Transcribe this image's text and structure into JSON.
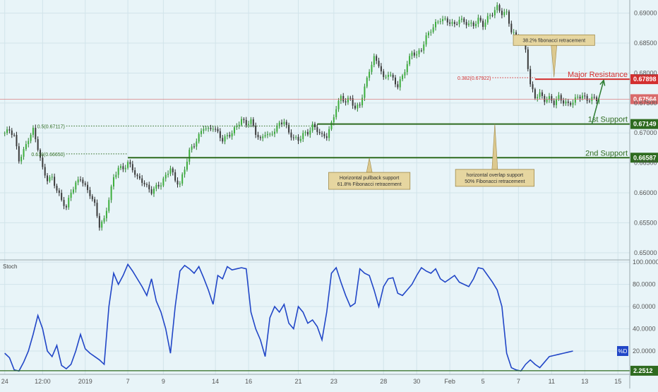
{
  "chart_data": [
    {
      "type": "candlestick",
      "price_axis": {
        "ticks": [
          {
            "value": 0.69,
            "label": "0.69000"
          },
          {
            "value": 0.685,
            "label": "0.68500"
          },
          {
            "value": 0.68,
            "label": "0.68000"
          },
          {
            "value": 0.675,
            "label": "0.67500"
          },
          {
            "value": 0.67,
            "label": "0.67000"
          },
          {
            "value": 0.665,
            "label": "0.66500"
          },
          {
            "value": 0.66,
            "label": "0.66000"
          },
          {
            "value": 0.655,
            "label": "0.65500"
          },
          {
            "value": 0.65,
            "label": "0.65000"
          }
        ],
        "ylim": [
          0.6488,
          0.6922
        ]
      },
      "time_axis": {
        "ticks": [
          {
            "t": 0,
            "label": "24"
          },
          {
            "t": 16,
            "label": "12:00"
          },
          {
            "t": 34,
            "label": "2019"
          },
          {
            "t": 52,
            "label": "7"
          },
          {
            "t": 67,
            "label": "9"
          },
          {
            "t": 89,
            "label": "14"
          },
          {
            "t": 103,
            "label": "16"
          },
          {
            "t": 124,
            "label": "21"
          },
          {
            "t": 139,
            "label": "23"
          },
          {
            "t": 160,
            "label": "28"
          },
          {
            "t": 174,
            "label": "30"
          },
          {
            "t": 188,
            "label": "Feb"
          },
          {
            "t": 202,
            "label": "5"
          },
          {
            "t": 217,
            "label": "7"
          },
          {
            "t": 231,
            "label": "11"
          },
          {
            "t": 245,
            "label": "13"
          },
          {
            "t": 259,
            "label": "15"
          }
        ],
        "xlim": [
          -2,
          264
        ]
      },
      "close_series": [
        [
          0,
          0.67
        ],
        [
          2,
          0.6705
        ],
        [
          4,
          0.6695
        ],
        [
          6,
          0.6655
        ],
        [
          8,
          0.667
        ],
        [
          10,
          0.669
        ],
        [
          12,
          0.6705
        ],
        [
          14,
          0.6675
        ],
        [
          16,
          0.664
        ],
        [
          18,
          0.6622
        ],
        [
          20,
          0.6625
        ],
        [
          22,
          0.6605
        ],
        [
          24,
          0.6588
        ],
        [
          26,
          0.6575
        ],
        [
          28,
          0.6602
        ],
        [
          30,
          0.6615
        ],
        [
          32,
          0.6625
        ],
        [
          34,
          0.661
        ],
        [
          36,
          0.6598
        ],
        [
          38,
          0.658
        ],
        [
          40,
          0.6545
        ],
        [
          42,
          0.6555
        ],
        [
          44,
          0.659
        ],
        [
          46,
          0.6625
        ],
        [
          48,
          0.6642
        ],
        [
          50,
          0.664
        ],
        [
          52,
          0.665
        ],
        [
          54,
          0.664
        ],
        [
          56,
          0.6625
        ],
        [
          58,
          0.662
        ],
        [
          60,
          0.661
        ],
        [
          62,
          0.6602
        ],
        [
          64,
          0.661
        ],
        [
          66,
          0.6615
        ],
        [
          68,
          0.6628
        ],
        [
          70,
          0.6642
        ],
        [
          72,
          0.662
        ],
        [
          74,
          0.6615
        ],
        [
          76,
          0.664
        ],
        [
          78,
          0.667
        ],
        [
          80,
          0.668
        ],
        [
          82,
          0.6695
        ],
        [
          84,
          0.671
        ],
        [
          86,
          0.6705
        ],
        [
          88,
          0.671
        ],
        [
          90,
          0.67
        ],
        [
          92,
          0.6688
        ],
        [
          94,
          0.6695
        ],
        [
          96,
          0.67
        ],
        [
          98,
          0.6712
        ],
        [
          100,
          0.6722
        ],
        [
          102,
          0.6715
        ],
        [
          104,
          0.672
        ],
        [
          106,
          0.67
        ],
        [
          108,
          0.6688
        ],
        [
          110,
          0.67
        ],
        [
          112,
          0.6695
        ],
        [
          114,
          0.6705
        ],
        [
          116,
          0.6715
        ],
        [
          118,
          0.672
        ],
        [
          120,
          0.67
        ],
        [
          122,
          0.6692
        ],
        [
          124,
          0.6688
        ],
        [
          126,
          0.6698
        ],
        [
          128,
          0.67
        ],
        [
          130,
          0.6712
        ],
        [
          132,
          0.6705
        ],
        [
          134,
          0.6695
        ],
        [
          136,
          0.6695
        ],
        [
          138,
          0.6715
        ],
        [
          140,
          0.6742
        ],
        [
          142,
          0.676
        ],
        [
          144,
          0.6752
        ],
        [
          146,
          0.6758
        ],
        [
          148,
          0.674
        ],
        [
          150,
          0.6748
        ],
        [
          152,
          0.6775
        ],
        [
          154,
          0.6805
        ],
        [
          156,
          0.6825
        ],
        [
          158,
          0.6815
        ],
        [
          160,
          0.679
        ],
        [
          162,
          0.68
        ],
        [
          164,
          0.679
        ],
        [
          166,
          0.6778
        ],
        [
          168,
          0.6795
        ],
        [
          170,
          0.6815
        ],
        [
          172,
          0.6835
        ],
        [
          174,
          0.683
        ],
        [
          176,
          0.684
        ],
        [
          178,
          0.686
        ],
        [
          180,
          0.6872
        ],
        [
          182,
          0.6882
        ],
        [
          184,
          0.689
        ],
        [
          186,
          0.6888
        ],
        [
          188,
          0.6885
        ],
        [
          190,
          0.688
        ],
        [
          192,
          0.689
        ],
        [
          194,
          0.6885
        ],
        [
          196,
          0.6882
        ],
        [
          198,
          0.688
        ],
        [
          200,
          0.689
        ],
        [
          202,
          0.688
        ],
        [
          204,
          0.6892
        ],
        [
          206,
          0.69
        ],
        [
          208,
          0.691
        ],
        [
          210,
          0.69
        ],
        [
          212,
          0.69
        ],
        [
          214,
          0.687
        ],
        [
          216,
          0.686
        ],
        [
          218,
          0.6858
        ],
        [
          220,
          0.684
        ],
        [
          222,
          0.678
        ],
        [
          224,
          0.676
        ],
        [
          226,
          0.6765
        ],
        [
          228,
          0.6755
        ],
        [
          230,
          0.6758
        ],
        [
          232,
          0.675
        ],
        [
          234,
          0.676
        ],
        [
          236,
          0.6752
        ],
        [
          238,
          0.6748
        ],
        [
          240,
          0.6752
        ],
        [
          242,
          0.676
        ],
        [
          244,
          0.6762
        ],
        [
          246,
          0.6755
        ],
        [
          248,
          0.6758
        ],
        [
          250,
          0.6756
        ]
      ],
      "horizontal_lines": [
        {
          "label": "Major Resistance",
          "value": 0.67898,
          "value_label": "0.67898",
          "color": "#d32f2f",
          "x_start": 224
        },
        {
          "label": "1st Support",
          "value": 0.67149,
          "value_label": "0.67149",
          "color": "#2e6b1f",
          "x_start": 132
        },
        {
          "label": "2nd Support",
          "value": 0.66587,
          "value_label": "0.66587",
          "color": "#2e6b1f",
          "x_start": 52
        }
      ],
      "current_price": {
        "value": 0.67564,
        "label": "0.67564",
        "color": "#d96a6a"
      },
      "fib_levels": [
        {
          "text": "0.382(0.67922)",
          "value": 0.67922,
          "t_start": 206,
          "t_end": 224,
          "color": "#d32f2f"
        },
        {
          "text": "0.5(0.67117)",
          "value": 0.67117,
          "t_start": 26,
          "t_end": 132,
          "color": "#2e6b1f"
        },
        {
          "text": "0.618(0.66650)",
          "value": 0.6665,
          "t_start": 26,
          "t_end": 52,
          "color": "#2e6b1f"
        }
      ],
      "annotations": [
        {
          "lines": [
            "38.2% fibonacci retracement"
          ],
          "t": 232,
          "value": 0.6855,
          "point_t": 232,
          "point_value": 0.6793
        },
        {
          "lines": [
            "Horizontal pullback support",
            "61.8% Fibonacci retracement"
          ],
          "t": 154,
          "value": 0.662,
          "point_t": 154,
          "point_value": 0.6658
        },
        {
          "lines": [
            "horizontal overlap support",
            "50% Fibonacci retracement"
          ],
          "t": 207,
          "value": 0.6625,
          "point_t": 207,
          "point_value": 0.6715
        }
      ],
      "arrow": {
        "from_t": 248,
        "from_value": 0.6715,
        "to_t": 253,
        "to_value": 0.6788,
        "color": "#2e7d32"
      }
    },
    {
      "type": "line",
      "title": "Stoch",
      "y_axis": {
        "ticks": [
          {
            "value": 100,
            "label": "100.0000"
          },
          {
            "value": 80,
            "label": "80.0000"
          },
          {
            "value": 60,
            "label": "60.0000"
          },
          {
            "value": 40,
            "label": "40.0000"
          },
          {
            "value": 20,
            "label": "20.0000"
          }
        ],
        "ylim": [
          -1,
          102
        ]
      },
      "series": [
        {
          "name": "%D",
          "color": "#2146c7",
          "points": [
            [
              0,
              18
            ],
            [
              2,
              14
            ],
            [
              4,
              3
            ],
            [
              6,
              2
            ],
            [
              8,
              10
            ],
            [
              10,
              20
            ],
            [
              12,
              35
            ],
            [
              14,
              52
            ],
            [
              16,
              40
            ],
            [
              18,
              20
            ],
            [
              20,
              15
            ],
            [
              22,
              25
            ],
            [
              24,
              7
            ],
            [
              26,
              4
            ],
            [
              28,
              8
            ],
            [
              30,
              20
            ],
            [
              32,
              35
            ],
            [
              34,
              22
            ],
            [
              36,
              18
            ],
            [
              38,
              15
            ],
            [
              40,
              12
            ],
            [
              42,
              8
            ],
            [
              44,
              60
            ],
            [
              46,
              90
            ],
            [
              48,
              80
            ],
            [
              50,
              88
            ],
            [
              52,
              98
            ],
            [
              54,
              92
            ],
            [
              56,
              85
            ],
            [
              58,
              78
            ],
            [
              60,
              70
            ],
            [
              62,
              85
            ],
            [
              64,
              65
            ],
            [
              66,
              55
            ],
            [
              68,
              40
            ],
            [
              70,
              18
            ],
            [
              72,
              60
            ],
            [
              74,
              92
            ],
            [
              76,
              97
            ],
            [
              78,
              94
            ],
            [
              80,
              90
            ],
            [
              82,
              96
            ],
            [
              84,
              86
            ],
            [
              86,
              75
            ],
            [
              88,
              62
            ],
            [
              90,
              88
            ],
            [
              92,
              85
            ],
            [
              94,
              96
            ],
            [
              96,
              93
            ],
            [
              98,
              94
            ],
            [
              100,
              95
            ],
            [
              102,
              94
            ],
            [
              104,
              55
            ],
            [
              106,
              40
            ],
            [
              108,
              30
            ],
            [
              110,
              15
            ],
            [
              112,
              50
            ],
            [
              114,
              60
            ],
            [
              116,
              55
            ],
            [
              118,
              62
            ],
            [
              120,
              45
            ],
            [
              122,
              40
            ],
            [
              124,
              60
            ],
            [
              126,
              55
            ],
            [
              128,
              45
            ],
            [
              130,
              48
            ],
            [
              132,
              42
            ],
            [
              134,
              30
            ],
            [
              136,
              55
            ],
            [
              138,
              90
            ],
            [
              140,
              95
            ],
            [
              142,
              82
            ],
            [
              144,
              70
            ],
            [
              146,
              60
            ],
            [
              148,
              63
            ],
            [
              150,
              94
            ],
            [
              152,
              90
            ],
            [
              154,
              88
            ],
            [
              156,
              75
            ],
            [
              158,
              60
            ],
            [
              160,
              78
            ],
            [
              162,
              85
            ],
            [
              164,
              86
            ],
            [
              166,
              72
            ],
            [
              168,
              70
            ],
            [
              170,
              75
            ],
            [
              172,
              80
            ],
            [
              174,
              88
            ],
            [
              176,
              95
            ],
            [
              178,
              92
            ],
            [
              180,
              90
            ],
            [
              182,
              94
            ],
            [
              184,
              85
            ],
            [
              186,
              82
            ],
            [
              188,
              85
            ],
            [
              190,
              88
            ],
            [
              192,
              82
            ],
            [
              194,
              80
            ],
            [
              196,
              78
            ],
            [
              198,
              85
            ],
            [
              200,
              95
            ],
            [
              202,
              94
            ],
            [
              204,
              88
            ],
            [
              206,
              82
            ],
            [
              208,
              75
            ],
            [
              210,
              60
            ],
            [
              212,
              18
            ],
            [
              214,
              5
            ],
            [
              216,
              3
            ],
            [
              218,
              2
            ],
            [
              220,
              8
            ],
            [
              222,
              12
            ],
            [
              224,
              8
            ],
            [
              226,
              5
            ],
            [
              228,
              10
            ],
            [
              230,
              15
            ],
            [
              232,
              16
            ],
            [
              234,
              17
            ],
            [
              236,
              18
            ],
            [
              238,
              19
            ],
            [
              240,
              20
            ]
          ]
        }
      ],
      "series_tag": {
        "text": "%D",
        "color": "#2146c7"
      },
      "level_line": {
        "value": 2.2512,
        "label": "2.2512",
        "color": "#2e6b1f"
      }
    }
  ]
}
